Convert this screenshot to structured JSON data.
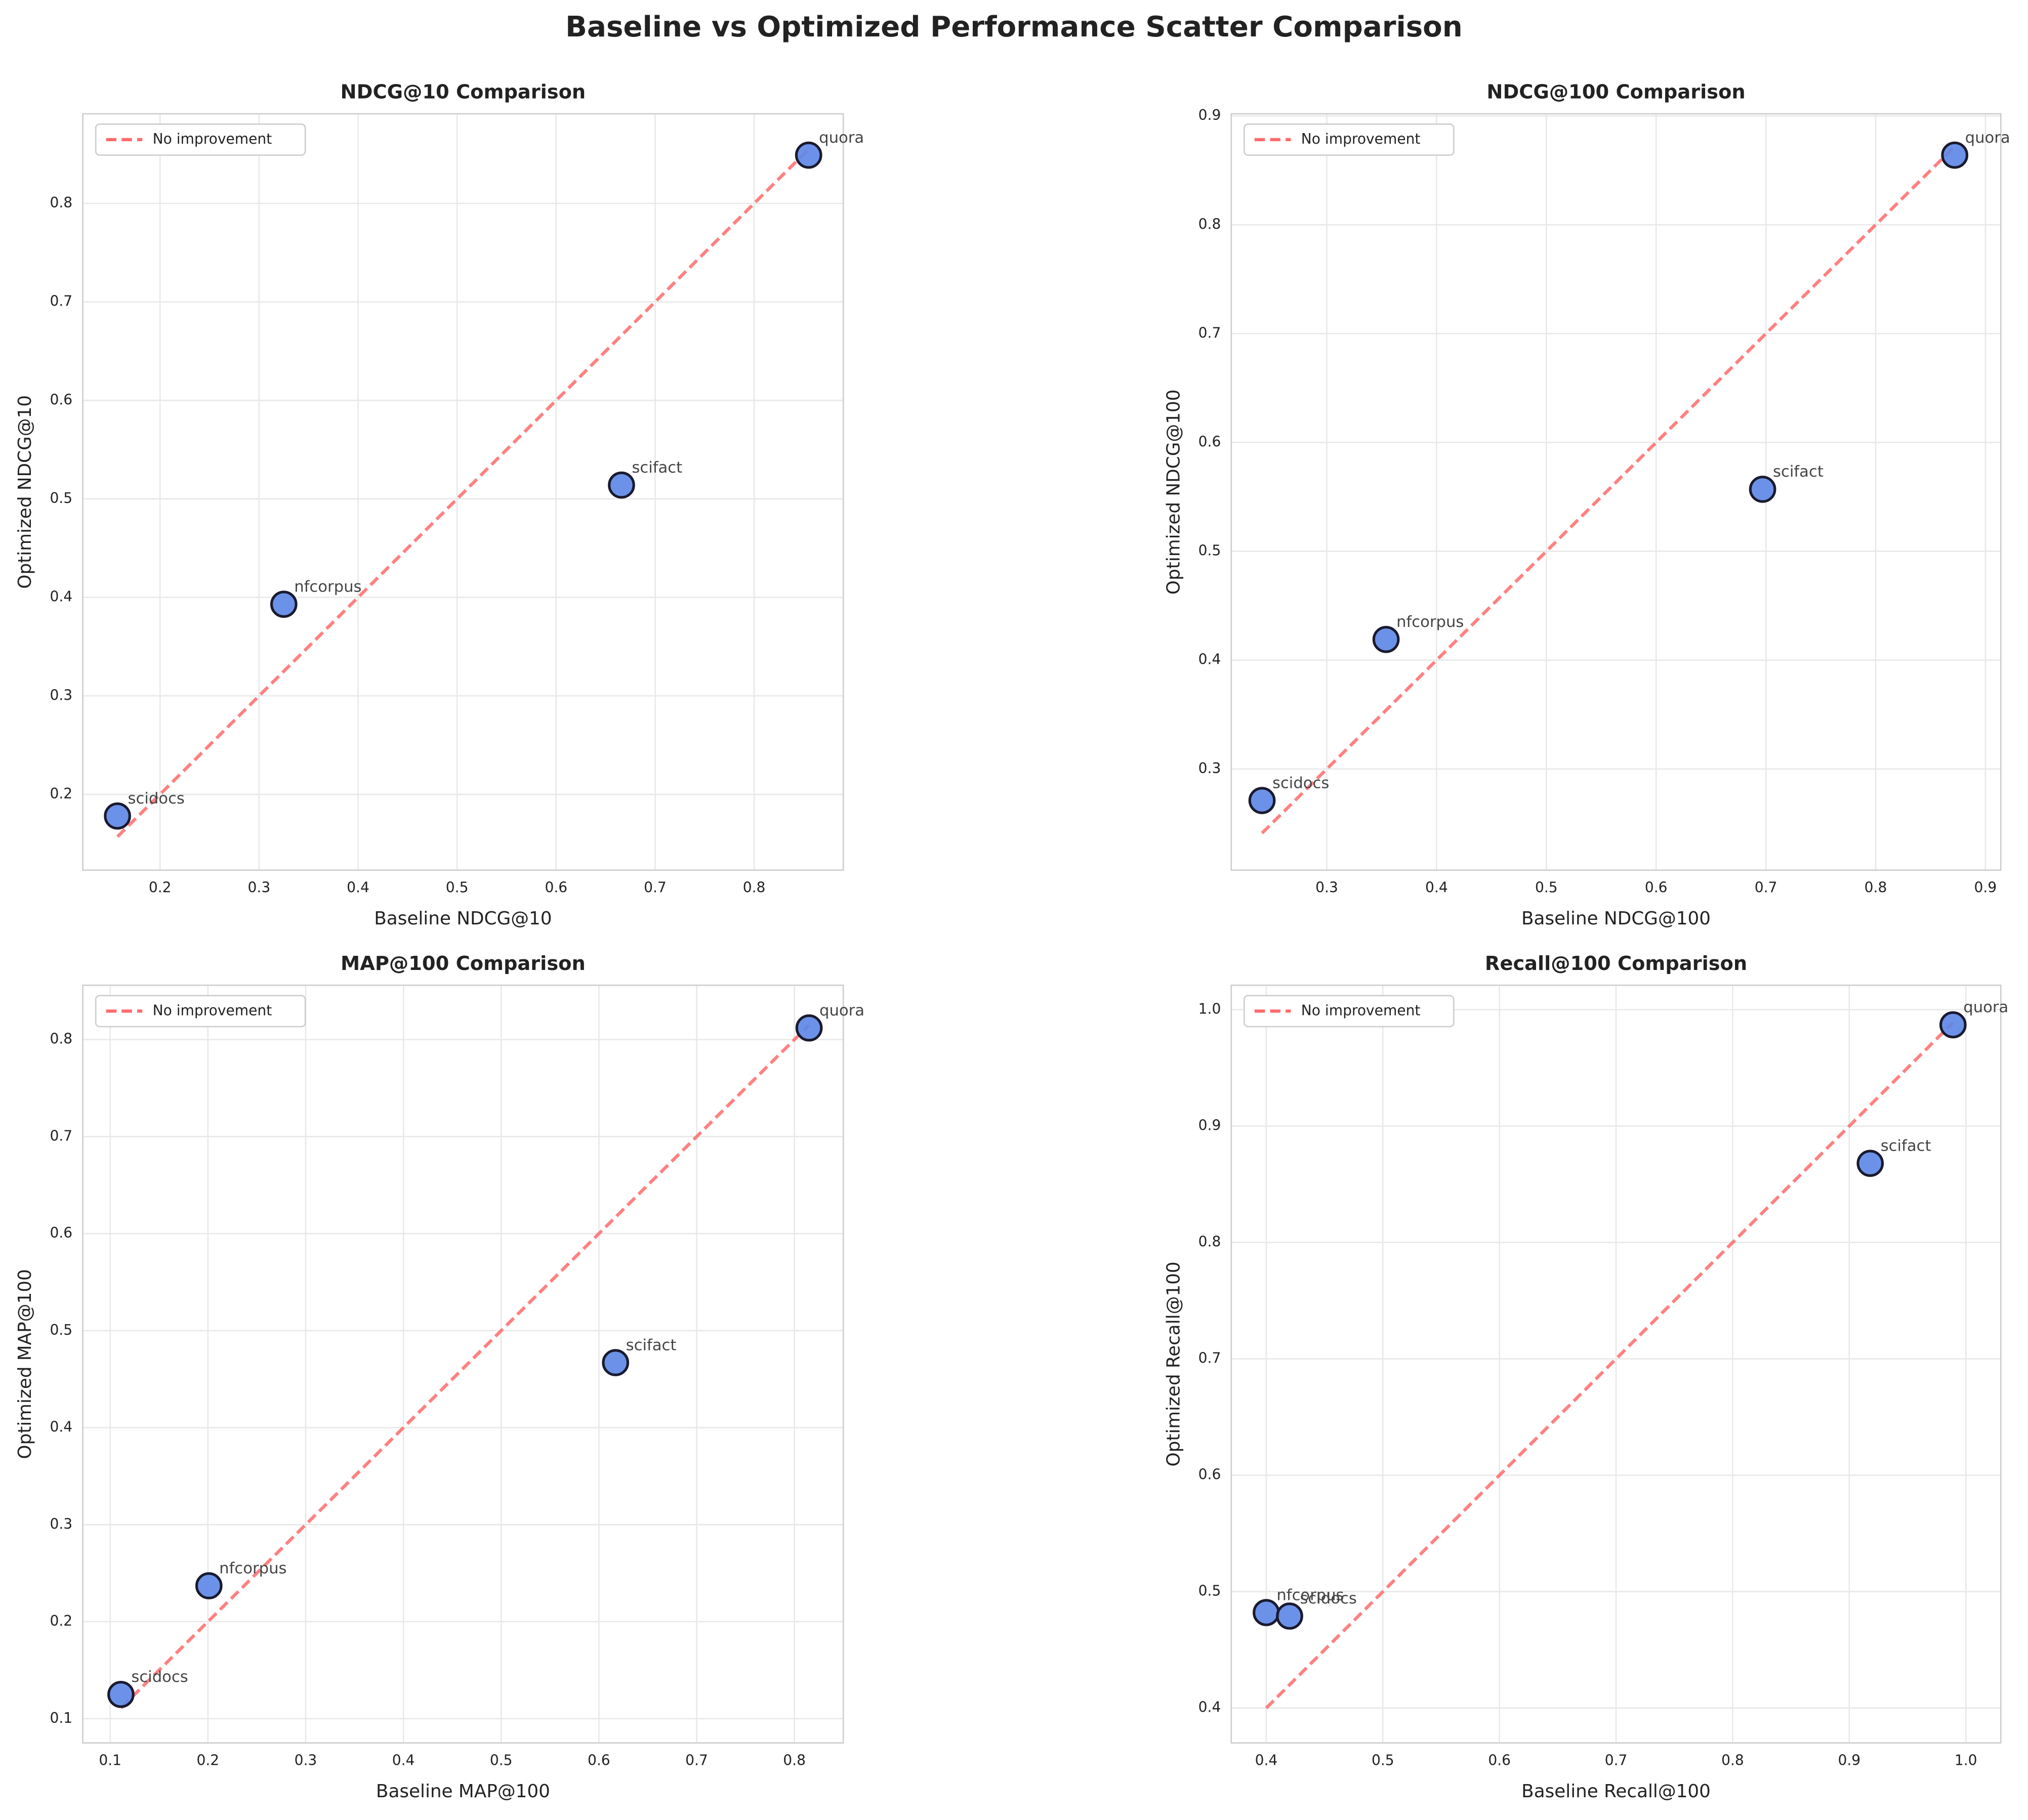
{
  "title": "Baseline vs Optimized Performance Scatter Comparison",
  "chart_data": [
    {
      "type": "scatter",
      "title": "NDCG@10 Comparison",
      "xlabel": "Baseline NDCG@10",
      "ylabel": "Optimized NDCG@10",
      "labels": [
        "scidocs",
        "nfcorpus",
        "scifact",
        "quora"
      ],
      "x": [
        0.157,
        0.325,
        0.666,
        0.855
      ],
      "y": [
        0.178,
        0.393,
        0.514,
        0.849
      ],
      "color": "#5b86e5",
      "reference_line": {
        "name": "No improvement",
        "color": "#ff6b6b"
      },
      "legend": "upper left",
      "grid": true,
      "xlim": [
        0.122,
        0.89
      ],
      "ylim": [
        0.123,
        0.891
      ],
      "xticks": [
        0.2,
        0.3,
        0.4,
        0.5,
        0.6,
        0.7,
        0.8
      ],
      "yticks": [
        0.2,
        0.3,
        0.4,
        0.5,
        0.6,
        0.7,
        0.8
      ]
    },
    {
      "type": "scatter",
      "title": "NDCG@100 Comparison",
      "xlabel": "Baseline NDCG@100",
      "ylabel": "Optimized NDCG@100",
      "labels": [
        "scidocs",
        "nfcorpus",
        "scifact",
        "quora"
      ],
      "x": [
        0.241,
        0.354,
        0.697,
        0.872
      ],
      "y": [
        0.271,
        0.419,
        0.557,
        0.864
      ],
      "color": "#5b86e5",
      "reference_line": {
        "name": "No improvement",
        "color": "#ff6b6b"
      },
      "legend": "upper left",
      "grid": true,
      "xlim": [
        0.213,
        0.914
      ],
      "ylim": [
        0.207,
        0.902
      ],
      "xticks": [
        0.3,
        0.4,
        0.5,
        0.6,
        0.7,
        0.8,
        0.9
      ],
      "yticks": [
        0.3,
        0.4,
        0.5,
        0.6,
        0.7,
        0.8,
        0.9
      ]
    },
    {
      "type": "scatter",
      "title": "MAP@100 Comparison",
      "xlabel": "Baseline MAP@100",
      "ylabel": "Optimized MAP@100",
      "labels": [
        "scidocs",
        "nfcorpus",
        "scifact",
        "quora"
      ],
      "x": [
        0.111,
        0.201,
        0.617,
        0.815
      ],
      "y": [
        0.125,
        0.237,
        0.467,
        0.812
      ],
      "color": "#5b86e5",
      "reference_line": {
        "name": "No improvement",
        "color": "#ff6b6b"
      },
      "legend": "upper left",
      "grid": true,
      "xlim": [
        0.072,
        0.85
      ],
      "ylim": [
        0.075,
        0.856
      ],
      "xticks": [
        0.1,
        0.2,
        0.3,
        0.4,
        0.5,
        0.6,
        0.7,
        0.8
      ],
      "yticks": [
        0.1,
        0.2,
        0.3,
        0.4,
        0.5,
        0.6,
        0.7,
        0.8
      ]
    },
    {
      "type": "scatter",
      "title": "Recall@100 Comparison",
      "xlabel": "Baseline Recall@100",
      "ylabel": "Optimized Recall@100",
      "labels": [
        "nfcorpus",
        "scidocs",
        "scifact",
        "quora"
      ],
      "x": [
        0.4,
        0.42,
        0.918,
        0.989
      ],
      "y": [
        0.482,
        0.479,
        0.868,
        0.987
      ],
      "color": "#5b86e5",
      "reference_line": {
        "name": "No improvement",
        "color": "#ff6b6b"
      },
      "legend": "upper left",
      "grid": true,
      "xlim": [
        0.37,
        1.03
      ],
      "ylim": [
        0.37,
        1.021
      ],
      "xticks": [
        0.4,
        0.5,
        0.6,
        0.7,
        0.8,
        0.9,
        {
          "value": 1,
          "label": "1.0"
        }
      ],
      "yticks": [
        0.4,
        0.5,
        0.6,
        0.7,
        0.8,
        0.9,
        {
          "value": 1,
          "label": "1.0"
        }
      ]
    }
  ]
}
